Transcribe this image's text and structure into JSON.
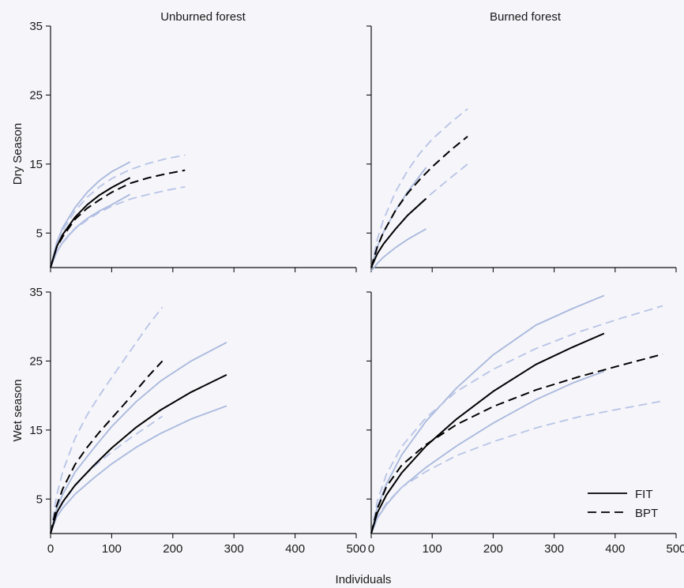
{
  "figure": {
    "xlabel": "Individuals",
    "col_titles": [
      "Unburned forest",
      "Burned forest"
    ],
    "row_labels": [
      "Dry Season",
      "Wet season"
    ]
  },
  "legend": {
    "placement": "bottom-right of lower-right panel",
    "items": [
      {
        "label": "FIT",
        "style": "solid"
      },
      {
        "label": "BPT",
        "style": "dashed"
      }
    ]
  },
  "colors": {
    "background": "#f5f5fa",
    "mean_curve": "#000000",
    "ci_curve_solid": "#a8b8dc",
    "ci_curve_dashed": "#b8c4e6"
  },
  "chart_data": [
    {
      "type": "line",
      "panel": "dry-unburned",
      "title": "Unburned forest",
      "ylabel": "Dry Season",
      "xlim": [
        0,
        500
      ],
      "ylim": [
        0,
        35
      ],
      "xticks": [
        0,
        100,
        200,
        300,
        400,
        500
      ],
      "yticks": [
        5,
        15,
        25,
        35
      ],
      "show_xtick_labels": false,
      "show_ytick_labels": true,
      "series": [
        {
          "name": "FIT",
          "role": "mean",
          "dash": false,
          "x": [
            0,
            10,
            20,
            40,
            60,
            80,
            100,
            130
          ],
          "y": [
            0,
            3,
            4.8,
            7.3,
            9.1,
            10.5,
            11.6,
            13
          ]
        },
        {
          "role": "ci_upper",
          "dash": false,
          "x": [
            0,
            10,
            20,
            40,
            60,
            80,
            100,
            130
          ],
          "y": [
            0,
            3.6,
            5.8,
            8.7,
            10.9,
            12.6,
            13.9,
            15.3
          ]
        },
        {
          "role": "ci_lower",
          "dash": false,
          "x": [
            0,
            10,
            20,
            40,
            60,
            80,
            100,
            130
          ],
          "y": [
            0,
            2.2,
            3.7,
            5.7,
            7.1,
            8.2,
            9.1,
            10.6
          ]
        },
        {
          "name": "BPT",
          "role": "mean",
          "dash": true,
          "x": [
            0,
            10,
            20,
            40,
            60,
            80,
            100,
            130,
            160,
            190,
            220
          ],
          "y": [
            0,
            2.9,
            4.5,
            7.0,
            8.6,
            9.8,
            10.9,
            12.2,
            13.0,
            13.6,
            14.1
          ]
        },
        {
          "role": "ci_upper",
          "dash": true,
          "x": [
            0,
            10,
            20,
            40,
            60,
            80,
            100,
            130,
            160,
            190,
            220
          ],
          "y": [
            0,
            3.4,
            5.4,
            8.2,
            10.2,
            11.7,
            12.9,
            14.2,
            15.1,
            15.8,
            16.3
          ]
        },
        {
          "role": "ci_lower",
          "dash": true,
          "x": [
            0,
            10,
            20,
            40,
            60,
            80,
            100,
            130,
            160,
            190,
            220
          ],
          "y": [
            0,
            2.3,
            3.6,
            5.6,
            6.9,
            8.0,
            8.9,
            9.9,
            10.6,
            11.2,
            11.7
          ]
        }
      ]
    },
    {
      "type": "line",
      "panel": "dry-burned",
      "title": "Burned forest",
      "xlim": [
        0,
        500
      ],
      "ylim": [
        0,
        35
      ],
      "xticks": [
        0,
        100,
        200,
        300,
        400,
        500
      ],
      "yticks": [
        5,
        15,
        25,
        35
      ],
      "show_xtick_labels": false,
      "show_ytick_labels": false,
      "series": [
        {
          "name": "FIT",
          "role": "mean",
          "dash": false,
          "x": [
            0,
            10,
            20,
            40,
            60,
            90
          ],
          "y": [
            0,
            2.0,
            3.4,
            5.6,
            7.6,
            10.0
          ]
        },
        {
          "role": "ci_upper",
          "dash": false,
          "x": [
            0,
            10,
            20,
            40,
            60,
            90
          ],
          "y": [
            0,
            3.0,
            5.1,
            8.3,
            11.0,
            14.5
          ]
        },
        {
          "role": "ci_lower",
          "dash": false,
          "x": [
            0,
            10,
            20,
            40,
            60,
            90
          ],
          "y": [
            -0.5,
            0.6,
            1.5,
            2.9,
            4.1,
            5.6
          ]
        },
        {
          "name": "BPT",
          "role": "mean",
          "dash": true,
          "x": [
            0,
            10,
            20,
            40,
            60,
            80,
            100,
            130,
            158
          ],
          "y": [
            0,
            3.0,
            5.1,
            8.3,
            10.8,
            12.8,
            14.6,
            17.0,
            19.0
          ]
        },
        {
          "role": "ci_upper",
          "dash": true,
          "x": [
            0,
            10,
            20,
            40,
            60,
            80,
            100,
            130,
            158
          ],
          "y": [
            0,
            4.1,
            6.9,
            11.0,
            14.1,
            16.6,
            18.6,
            21.0,
            23.0
          ]
        },
        {
          "role": "ci_lower",
          "dash": true,
          "x": [
            0,
            10,
            20,
            40,
            60,
            80,
            100,
            130,
            158
          ],
          "y": [
            0,
            2.0,
            3.4,
            5.6,
            7.6,
            9.3,
            10.8,
            13.0,
            15.0
          ]
        }
      ]
    },
    {
      "type": "line",
      "panel": "wet-unburned",
      "ylabel": "Wet season",
      "xlim": [
        0,
        500
      ],
      "ylim": [
        0,
        35
      ],
      "xticks": [
        0,
        100,
        200,
        300,
        400,
        500
      ],
      "yticks": [
        5,
        15,
        25,
        35
      ],
      "show_xtick_labels": true,
      "show_ytick_labels": true,
      "series": [
        {
          "name": "FIT",
          "role": "mean",
          "dash": false,
          "x": [
            0,
            10,
            20,
            40,
            70,
            100,
            140,
            180,
            230,
            288
          ],
          "y": [
            0,
            3.0,
            4.6,
            7.0,
            9.8,
            12.4,
            15.4,
            17.9,
            20.5,
            23.0
          ]
        },
        {
          "role": "ci_upper",
          "dash": false,
          "x": [
            0,
            10,
            20,
            40,
            70,
            100,
            140,
            180,
            230,
            288
          ],
          "y": [
            0,
            3.6,
            5.7,
            8.9,
            12.3,
            15.5,
            19.1,
            22.1,
            25.0,
            27.7
          ]
        },
        {
          "role": "ci_lower",
          "dash": false,
          "x": [
            0,
            10,
            20,
            40,
            70,
            100,
            140,
            180,
            230,
            288
          ],
          "y": [
            0,
            2.4,
            3.7,
            5.7,
            8.0,
            10.1,
            12.5,
            14.5,
            16.6,
            18.5
          ]
        },
        {
          "name": "BPT",
          "role": "mean",
          "dash": true,
          "x": [
            0,
            10,
            20,
            40,
            60,
            80,
            100,
            130,
            160,
            183
          ],
          "y": [
            0,
            4.0,
            6.5,
            10.0,
            12.5,
            14.7,
            16.7,
            19.7,
            22.8,
            25.0
          ]
        },
        {
          "role": "ci_upper",
          "dash": true,
          "x": [
            0,
            10,
            20,
            40,
            60,
            80,
            100,
            130,
            160,
            183
          ],
          "y": [
            0,
            5.5,
            9.0,
            13.8,
            17.2,
            20.0,
            22.6,
            26.4,
            30.2,
            32.8
          ]
        },
        {
          "role": "ci_lower",
          "dash": true,
          "x": [
            0,
            10,
            20,
            40,
            60,
            80,
            100,
            130,
            160,
            183
          ],
          "y": [
            0,
            2.8,
            4.4,
            6.9,
            8.8,
            10.4,
            11.8,
            13.8,
            15.6,
            17.0
          ]
        }
      ]
    },
    {
      "type": "line",
      "panel": "wet-burned",
      "xlim": [
        0,
        500
      ],
      "ylim": [
        0,
        35
      ],
      "xticks": [
        0,
        100,
        200,
        300,
        400,
        500
      ],
      "yticks": [
        5,
        15,
        25,
        35
      ],
      "show_xtick_labels": true,
      "show_ytick_labels": false,
      "series": [
        {
          "name": "FIT",
          "role": "mean",
          "dash": false,
          "x": [
            0,
            10,
            25,
            50,
            90,
            140,
            200,
            270,
            330,
            382
          ],
          "y": [
            0,
            3.0,
            5.6,
            8.8,
            12.7,
            16.6,
            20.6,
            24.5,
            27.0,
            29.0
          ]
        },
        {
          "role": "ci_upper",
          "dash": false,
          "x": [
            0,
            10,
            25,
            50,
            90,
            140,
            200,
            270,
            330,
            382
          ],
          "y": [
            0,
            3.8,
            7.2,
            11.4,
            16.3,
            21.1,
            25.9,
            30.2,
            32.6,
            34.5
          ]
        },
        {
          "role": "ci_lower",
          "dash": false,
          "x": [
            0,
            10,
            25,
            50,
            90,
            140,
            200,
            270,
            330,
            382
          ],
          "y": [
            0,
            2.2,
            4.2,
            6.7,
            9.6,
            12.7,
            16.0,
            19.4,
            21.8,
            23.5
          ]
        },
        {
          "name": "BPT",
          "role": "mean",
          "dash": true,
          "x": [
            0,
            10,
            25,
            50,
            90,
            140,
            200,
            270,
            340,
            410,
            478
          ],
          "y": [
            0,
            3.6,
            6.8,
            9.9,
            12.9,
            15.8,
            18.4,
            20.8,
            22.7,
            24.4,
            26.0
          ]
        },
        {
          "role": "ci_upper",
          "dash": true,
          "x": [
            0,
            10,
            25,
            50,
            90,
            140,
            200,
            270,
            340,
            410,
            478
          ],
          "y": [
            0,
            4.7,
            8.6,
            12.6,
            16.8,
            20.6,
            23.8,
            26.8,
            29.2,
            31.2,
            33.0
          ]
        },
        {
          "role": "ci_lower",
          "dash": true,
          "x": [
            0,
            10,
            25,
            50,
            90,
            140,
            200,
            270,
            340,
            410,
            478
          ],
          "y": [
            0,
            2.4,
            4.4,
            6.7,
            9.0,
            11.3,
            13.3,
            15.3,
            16.9,
            18.1,
            19.2
          ]
        }
      ]
    }
  ]
}
